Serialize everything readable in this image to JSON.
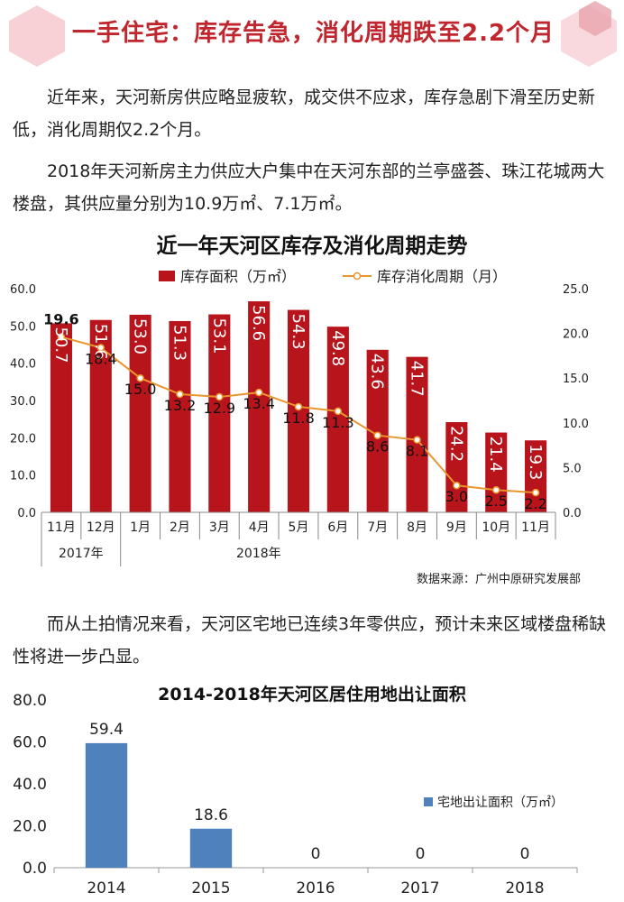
{
  "header": {
    "title": "一手住宅：库存告急，消化周期跌至2.2个月"
  },
  "paragraphs": {
    "p1": "近年来，天河新房供应略显疲软，成交供不应求，库存急剧下滑至历史新低，消化周期仅2.2个月。",
    "p2": "2018年天河新房主力供应大户集中在天河东部的兰亭盛荟、珠江花城两大楼盘，其供应量分别为10.9万㎡、7.1万㎡。",
    "p3": "而从土拍情况来看，天河区宅地已连续3年零供应，预计未来区域楼盘稀缺性将进一步凸显。"
  },
  "colors": {
    "accent": "#c0262d",
    "bar_red": "#b8141b",
    "line_orange": "#e8962e",
    "bar_blue": "#4f81bd",
    "hex_pink": "#f7c9cf"
  },
  "chart_data": [
    {
      "type": "bar+line",
      "title": "近一年天河区库存及消化周期走势",
      "categories": [
        "11月",
        "12月",
        "1月",
        "2月",
        "3月",
        "4月",
        "5月",
        "6月",
        "7月",
        "8月",
        "9月",
        "10月",
        "11月"
      ],
      "year_groups": [
        {
          "label": "2017年",
          "span": 2
        },
        {
          "label": "2018年",
          "span": 11
        }
      ],
      "series": [
        {
          "name": "库存面积（万㎡）",
          "type": "bar",
          "axis": "left",
          "values": [
            50.7,
            51.6,
            53.0,
            51.3,
            53.1,
            56.6,
            54.3,
            49.8,
            43.6,
            41.7,
            24.2,
            21.4,
            19.3
          ]
        },
        {
          "name": "库存消化周期（月）",
          "type": "line",
          "axis": "right",
          "values": [
            19.6,
            18.4,
            15.0,
            13.2,
            12.9,
            13.4,
            11.8,
            11.3,
            8.6,
            8.1,
            3.0,
            2.5,
            2.2
          ]
        }
      ],
      "ylim_left": [
        0,
        60
      ],
      "yticks_left": [
        "0.0",
        "10.0",
        "20.0",
        "30.0",
        "40.0",
        "50.0",
        "60.0"
      ],
      "ylim_right": [
        0,
        25
      ],
      "yticks_right": [
        "0.0",
        "5.0",
        "10.0",
        "15.0",
        "20.0",
        "25.0"
      ],
      "bar_labels": [
        "50.7",
        "51.6",
        "53.0",
        "51.3",
        "53.1",
        "56.6",
        "54.3",
        "49.8",
        "43.6",
        "41.7",
        "24.2",
        "21.4",
        "19.3"
      ],
      "line_labels": [
        "19.6",
        "18.4",
        "15.0",
        "13.2",
        "12.9",
        "13.4",
        "11.8",
        "11.3",
        "8.6",
        "8.1",
        "3.0",
        "2.5",
        "2.2"
      ],
      "legend_position": "top",
      "source": "数据来源：广州中原研究发展部"
    },
    {
      "type": "bar",
      "title": "2014-2018年天河区居住用地出让面积",
      "categories": [
        "2014",
        "2015",
        "2016",
        "2017",
        "2018"
      ],
      "series": [
        {
          "name": "宅地出让面积（万㎡）",
          "values": [
            59.4,
            18.6,
            0,
            0,
            0
          ]
        }
      ],
      "value_labels": [
        "59.4",
        "18.6",
        "0",
        "0",
        "0"
      ],
      "ylim": [
        0,
        80
      ],
      "yticks": [
        "0.0",
        "20.0",
        "40.0",
        "60.0",
        "80.0"
      ],
      "legend_position": "right"
    }
  ]
}
